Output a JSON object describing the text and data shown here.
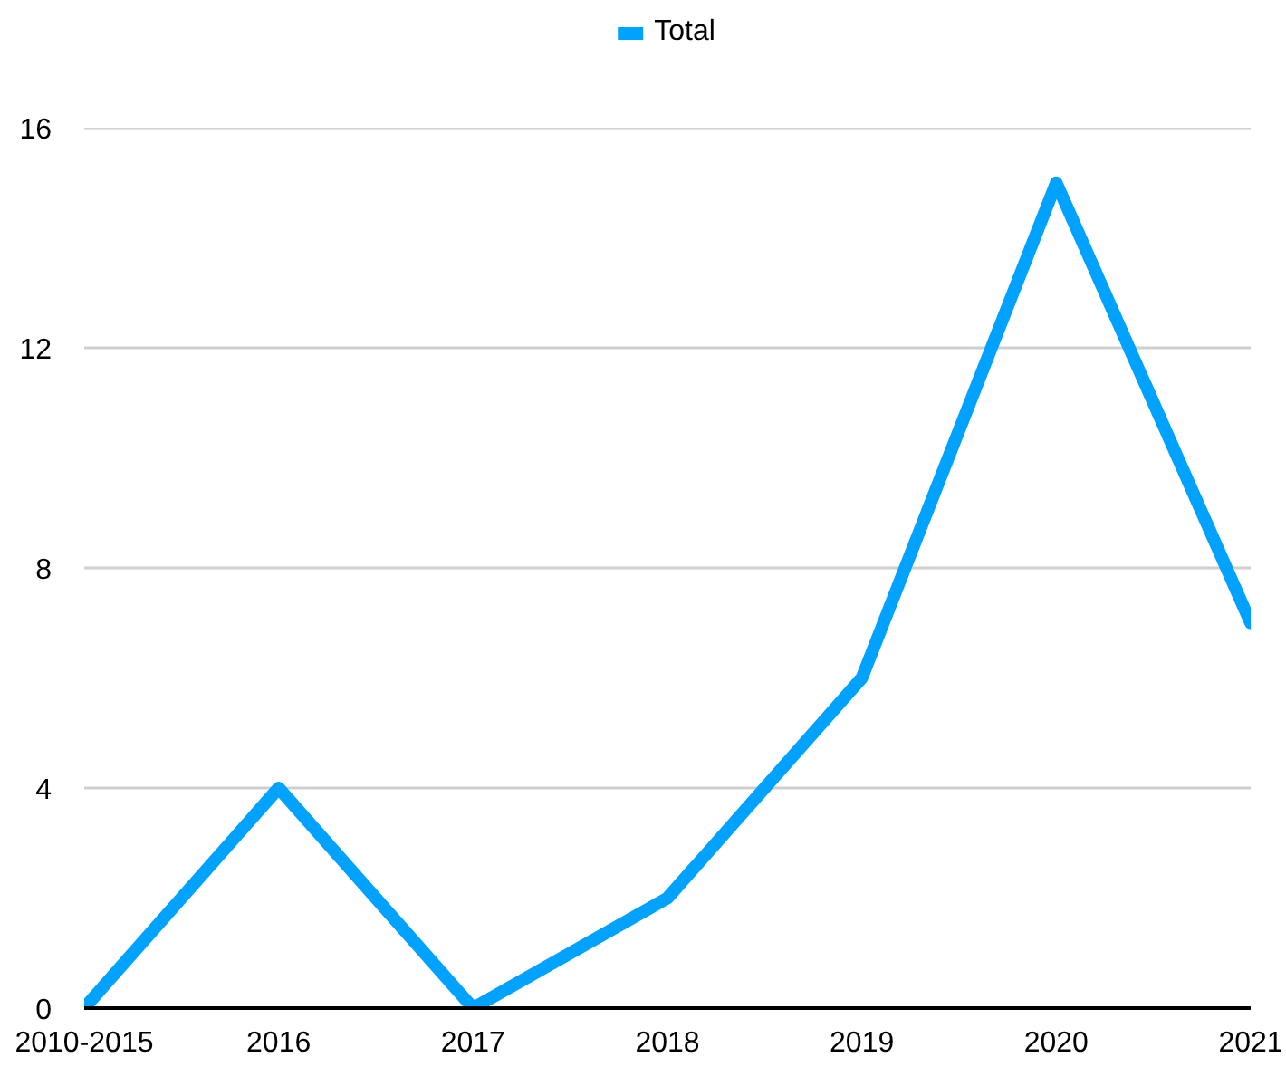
{
  "chart_data": {
    "type": "line",
    "categories": [
      "2010-2015",
      "2016",
      "2017",
      "2018",
      "2019",
      "2020",
      "2021"
    ],
    "series": [
      {
        "name": "Total",
        "color": "#00a2ff",
        "values": [
          0,
          4,
          0,
          2,
          6,
          15,
          7
        ]
      }
    ],
    "ylim": [
      0,
      16
    ],
    "yticks": [
      0,
      4,
      8,
      12,
      16
    ],
    "grid": "y",
    "legend": "top"
  }
}
